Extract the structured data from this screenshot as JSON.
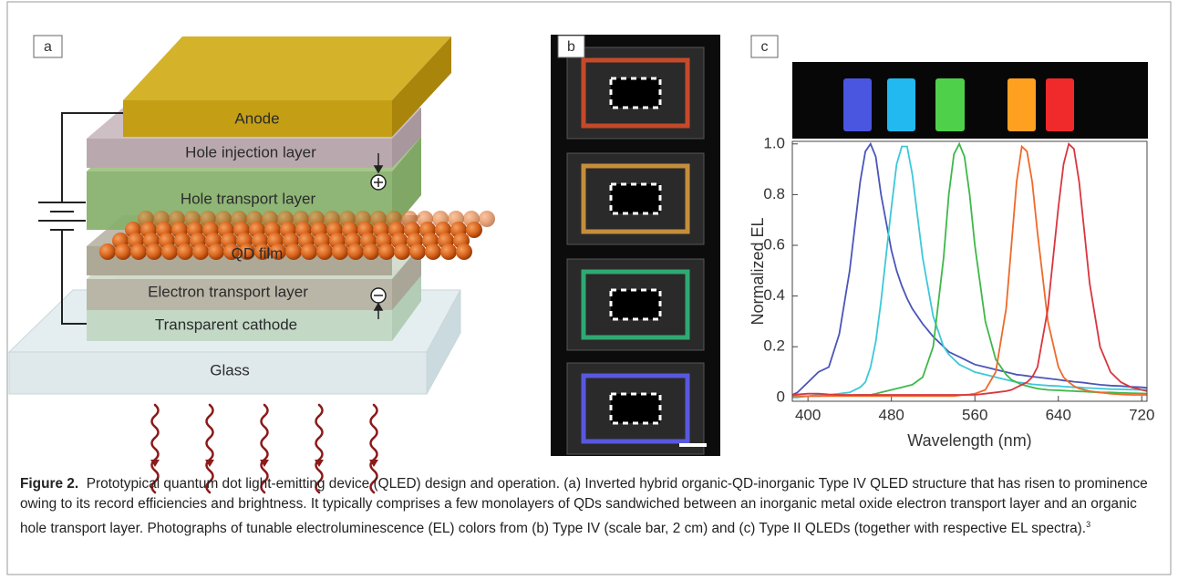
{
  "panel_labels": [
    "a",
    "b",
    "c"
  ],
  "diagram": {
    "layers": [
      "Anode",
      "Hole injection layer",
      "Hole transport layer",
      "QD film",
      "Electron transport layer",
      "Transparent cathode",
      "Glass"
    ]
  },
  "chart_data": {
    "type": "line",
    "x_label": "Wavelength (nm)",
    "y_label": "Normalized EL",
    "x": [
      385,
      390,
      400,
      410,
      420,
      430,
      440,
      450,
      455,
      460,
      465,
      470,
      480,
      485,
      490,
      495,
      500,
      510,
      520,
      530,
      535,
      540,
      545,
      550,
      555,
      560,
      570,
      580,
      590,
      595,
      600,
      605,
      610,
      615,
      620,
      630,
      640,
      645,
      650,
      655,
      660,
      665,
      670,
      680,
      690,
      700,
      710,
      720,
      725
    ],
    "series": [
      {
        "color": "#4a55b8",
        "values": [
          0.01,
          0.02,
          0.06,
          0.1,
          0.12,
          0.25,
          0.5,
          0.85,
          0.97,
          1.0,
          0.95,
          0.8,
          0.58,
          0.5,
          0.44,
          0.39,
          0.35,
          0.29,
          0.24,
          0.2,
          0.18,
          0.17,
          0.16,
          0.15,
          0.14,
          0.13,
          0.12,
          0.11,
          0.1,
          0.095,
          0.09,
          0.088,
          0.085,
          0.082,
          0.08,
          0.075,
          0.07,
          0.067,
          0.065,
          0.062,
          0.06,
          0.058,
          0.055,
          0.05,
          0.047,
          0.045,
          0.042,
          0.04,
          0.038
        ]
      },
      {
        "color": "#3cc8d8",
        "values": [
          0,
          0,
          0.005,
          0.01,
          0.01,
          0.015,
          0.02,
          0.04,
          0.06,
          0.12,
          0.22,
          0.38,
          0.75,
          0.92,
          0.99,
          0.99,
          0.88,
          0.55,
          0.32,
          0.2,
          0.17,
          0.15,
          0.13,
          0.12,
          0.11,
          0.1,
          0.09,
          0.08,
          0.07,
          0.065,
          0.06,
          0.058,
          0.055,
          0.052,
          0.05,
          0.047,
          0.045,
          0.043,
          0.042,
          0.04,
          0.04,
          0.038,
          0.037,
          0.035,
          0.033,
          0.032,
          0.031,
          0.03,
          0.03
        ]
      },
      {
        "color": "#3fb84a",
        "values": [
          0.005,
          0.005,
          0.005,
          0.005,
          0.008,
          0.008,
          0.008,
          0.01,
          0.01,
          0.01,
          0.015,
          0.02,
          0.03,
          0.035,
          0.04,
          0.045,
          0.05,
          0.08,
          0.2,
          0.55,
          0.8,
          0.96,
          1.0,
          0.95,
          0.8,
          0.6,
          0.3,
          0.15,
          0.09,
          0.07,
          0.06,
          0.05,
          0.045,
          0.04,
          0.035,
          0.03,
          0.028,
          0.027,
          0.026,
          0.025,
          0.024,
          0.023,
          0.022,
          0.02,
          0.02,
          0.018,
          0.017,
          0.016,
          0.015
        ]
      },
      {
        "color": "#ee6a2a",
        "values": [
          0.005,
          0.005,
          0.005,
          0.005,
          0.005,
          0.005,
          0.005,
          0.005,
          0.005,
          0.005,
          0.005,
          0.005,
          0.005,
          0.005,
          0.005,
          0.005,
          0.005,
          0.005,
          0.005,
          0.005,
          0.005,
          0.005,
          0.008,
          0.01,
          0.012,
          0.015,
          0.03,
          0.1,
          0.35,
          0.6,
          0.85,
          0.99,
          0.97,
          0.85,
          0.65,
          0.3,
          0.12,
          0.08,
          0.06,
          0.045,
          0.035,
          0.03,
          0.025,
          0.02,
          0.015,
          0.012,
          0.01,
          0.01,
          0.01
        ]
      },
      {
        "color": "#d9363e",
        "values": [
          0.01,
          0.012,
          0.015,
          0.015,
          0.012,
          0.01,
          0.01,
          0.01,
          0.01,
          0.01,
          0.01,
          0.01,
          0.01,
          0.01,
          0.01,
          0.01,
          0.01,
          0.01,
          0.01,
          0.01,
          0.01,
          0.01,
          0.01,
          0.01,
          0.01,
          0.01,
          0.015,
          0.02,
          0.025,
          0.03,
          0.04,
          0.05,
          0.06,
          0.08,
          0.12,
          0.35,
          0.75,
          0.92,
          1.0,
          0.98,
          0.85,
          0.65,
          0.45,
          0.2,
          0.1,
          0.06,
          0.04,
          0.03,
          0.025
        ]
      }
    ],
    "xlim": [
      385,
      725
    ],
    "ylim": [
      -0.015,
      1.01
    ],
    "xticks": [
      400,
      480,
      560,
      640,
      720
    ],
    "yticks": [
      0,
      0.2,
      0.4,
      0.6,
      0.8,
      {
        "value": 1,
        "label": "1.0"
      }
    ]
  },
  "caption": {
    "label": "Figure 2.",
    "text": "Prototypical quantum dot light-emitting device (QLED) design and operation. (a) Inverted hybrid organic-QD-inorganic Type IV QLED structure that has risen to prominence owing to its record efficiencies and brightness. It typically comprises a few monolayers of QDs sandwiched between an inorganic metal oxide electron transport layer and an organic hole transport layer. Photographs of tunable electroluminescence (EL) colors from (b) Type IV (scale bar, 2 cm) and (c) Type II QLEDs (together with respective EL spectra).",
    "ref": "3"
  }
}
